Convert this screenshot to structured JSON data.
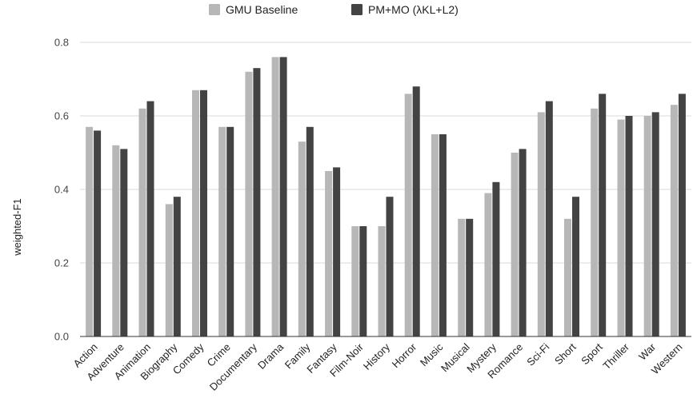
{
  "chart_data": {
    "type": "bar",
    "ylabel": "weighted-F1",
    "xlabel": "",
    "ylim": [
      0,
      0.8
    ],
    "yticks": [
      "0.0",
      "0.2",
      "0.4",
      "0.6",
      "0.8"
    ],
    "grid": true,
    "legend_position": "top-center",
    "categories": [
      "Action",
      "Adventure",
      "Animation",
      "Biography",
      "Comedy",
      "Crime",
      "Documentary",
      "Drama",
      "Family",
      "Fantasy",
      "Film-Noir",
      "History",
      "Horror",
      "Music",
      "Musical",
      "Mystery",
      "Romance",
      "Sci-Fi",
      "Short",
      "Sport",
      "Thriller",
      "War",
      "Western"
    ],
    "series": [
      {
        "name": "GMU Baseline",
        "color": "#b7b7b7",
        "values": [
          0.57,
          0.52,
          0.62,
          0.36,
          0.67,
          0.57,
          0.72,
          0.76,
          0.53,
          0.45,
          0.3,
          0.3,
          0.66,
          0.55,
          0.32,
          0.39,
          0.5,
          0.61,
          0.32,
          0.62,
          0.59,
          0.6,
          0.63
        ]
      },
      {
        "name": "PM+MO (λKL+L2)",
        "color": "#434343",
        "values": [
          0.56,
          0.51,
          0.64,
          0.38,
          0.67,
          0.57,
          0.73,
          0.76,
          0.57,
          0.46,
          0.3,
          0.38,
          0.68,
          0.55,
          0.32,
          0.42,
          0.51,
          0.64,
          0.38,
          0.66,
          0.6,
          0.61,
          0.66
        ]
      }
    ]
  }
}
